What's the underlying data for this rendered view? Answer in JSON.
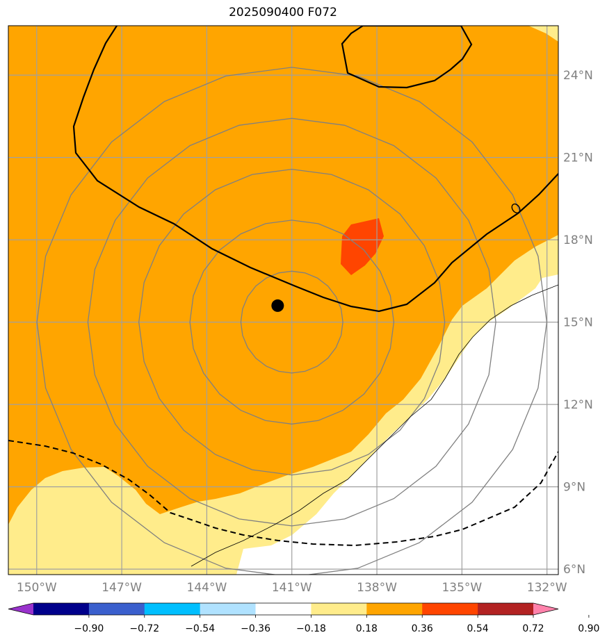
{
  "title": "2025090400 F072",
  "map": {
    "lon_range": [
      -151,
      -131.6
    ],
    "lat_range": [
      5.8,
      25.8
    ],
    "lon_ticks": [
      {
        "value": -150,
        "label": "150°W"
      },
      {
        "value": -147,
        "label": "147°W"
      },
      {
        "value": -144,
        "label": "144°W"
      },
      {
        "value": -141,
        "label": "141°W"
      },
      {
        "value": -138,
        "label": "138°W"
      },
      {
        "value": -135,
        "label": "135°W"
      },
      {
        "value": -132,
        "label": "132°W"
      }
    ],
    "lat_ticks": [
      {
        "value": 6,
        "label": "6°N"
      },
      {
        "value": 9,
        "label": "9°N"
      },
      {
        "value": 12,
        "label": "12°N"
      },
      {
        "value": 15,
        "label": "15°N"
      },
      {
        "value": 18,
        "label": "18°N"
      },
      {
        "value": 21,
        "label": "21°N"
      },
      {
        "value": 24,
        "label": "24°N"
      }
    ],
    "storm_center": {
      "lon": -141.5,
      "lat": 15.6
    },
    "range_ring_center": {
      "lon": -141.0,
      "lat": 15.0
    },
    "range_rings_km": [
      200,
      400,
      600,
      800,
      1000
    ]
  },
  "colorbar": {
    "colors": [
      "#9932cc",
      "#00008b",
      "#3a5fcd",
      "#00bfff",
      "#b0e2ff",
      "#ffffff",
      "#ffec8b",
      "#ffa500",
      "#ff4500",
      "#b22222",
      "#ff82ab"
    ],
    "labels": [
      "−0.90",
      "−0.72",
      "−0.54",
      "−0.36",
      "−0.18",
      "0.18",
      "0.36",
      "0.54",
      "0.72",
      "0.90"
    ]
  },
  "colors": {
    "field_high": "#ffa500",
    "field_mid": "#ffec8b",
    "field_peak": "#ff4500",
    "grid": "#a0a0a0",
    "rings": "#808080"
  }
}
